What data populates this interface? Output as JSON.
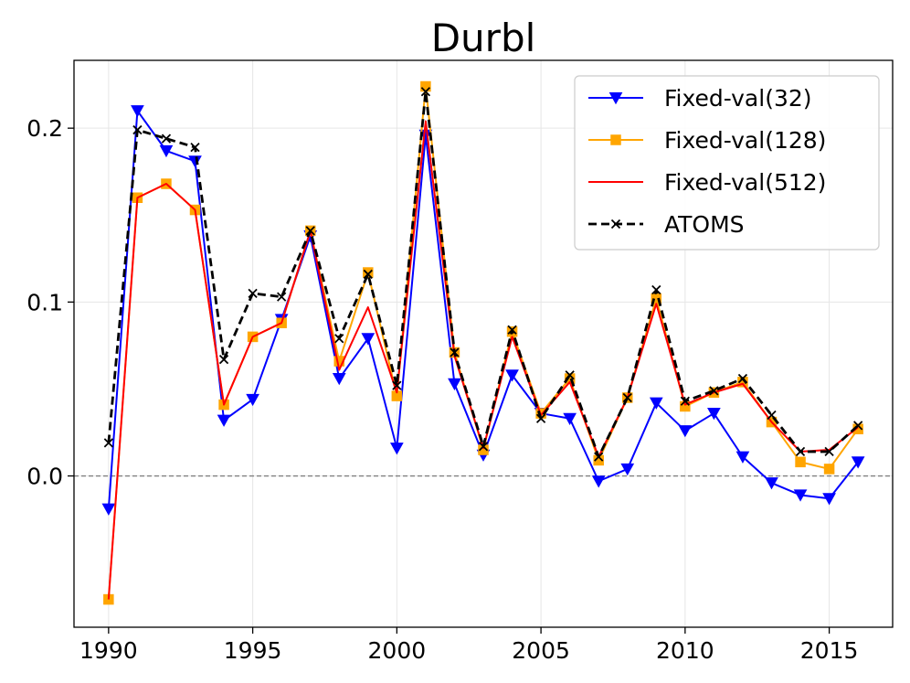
{
  "chart_data": {
    "type": "line",
    "title": "Durbl",
    "xlabel": "",
    "ylabel": "",
    "xlim": [
      1988.8,
      2017.2
    ],
    "ylim": [
      -0.087,
      0.239
    ],
    "xticks": [
      1990,
      1995,
      2000,
      2005,
      2010,
      2015
    ],
    "yticks": [
      0.0,
      0.1,
      0.2
    ],
    "ytick_labels": [
      "0.0",
      "0.1",
      "0.2"
    ],
    "grid": true,
    "reference_line": {
      "y": 0.0,
      "style": "dashed",
      "color": "#808080"
    },
    "legend_position": "upper right",
    "x": [
      1990,
      1991,
      1992,
      1993,
      1994,
      1995,
      1996,
      1997,
      1998,
      1999,
      2000,
      2001,
      2002,
      2003,
      2004,
      2005,
      2006,
      2007,
      2008,
      2009,
      2010,
      2011,
      2012,
      2013,
      2014,
      2015,
      2016
    ],
    "series": [
      {
        "name": "Fixed-val(32)",
        "color": "#0000ff",
        "marker": "triangle-down",
        "line_style": "solid",
        "values": [
          -0.019,
          0.21,
          0.187,
          0.181,
          0.032,
          0.044,
          0.09,
          0.138,
          0.056,
          0.079,
          0.016,
          0.196,
          0.053,
          0.012,
          0.058,
          0.036,
          0.033,
          -0.003,
          0.004,
          0.042,
          0.026,
          0.036,
          0.011,
          -0.004,
          -0.011,
          -0.013,
          0.008
        ]
      },
      {
        "name": "Fixed-val(128)",
        "color": "#ffa500",
        "marker": "square",
        "line_style": "solid",
        "values": [
          -0.071,
          0.16,
          0.168,
          0.153,
          0.041,
          0.08,
          0.088,
          0.141,
          0.066,
          0.117,
          0.046,
          0.224,
          0.071,
          0.015,
          0.083,
          0.036,
          0.056,
          0.009,
          0.045,
          0.102,
          0.04,
          0.048,
          0.054,
          0.031,
          0.008,
          0.004,
          0.027
        ]
      },
      {
        "name": "Fixed-val(512)",
        "color": "#ff0000",
        "marker": "none",
        "line_style": "solid",
        "values": [
          -0.071,
          0.16,
          0.168,
          0.153,
          0.041,
          0.08,
          0.088,
          0.141,
          0.061,
          0.097,
          0.048,
          0.204,
          0.069,
          0.016,
          0.08,
          0.035,
          0.054,
          0.011,
          0.045,
          0.099,
          0.041,
          0.048,
          0.053,
          0.031,
          0.014,
          0.015,
          0.028
        ]
      },
      {
        "name": "ATOMS",
        "color": "#000000",
        "marker": "x",
        "line_style": "dashed",
        "values": [
          0.019,
          0.199,
          0.194,
          0.189,
          0.067,
          0.105,
          0.103,
          0.141,
          0.079,
          0.116,
          0.052,
          0.221,
          0.071,
          0.017,
          0.084,
          0.033,
          0.058,
          0.011,
          0.045,
          0.107,
          0.043,
          0.049,
          0.056,
          0.035,
          0.014,
          0.014,
          0.029
        ]
      }
    ]
  }
}
